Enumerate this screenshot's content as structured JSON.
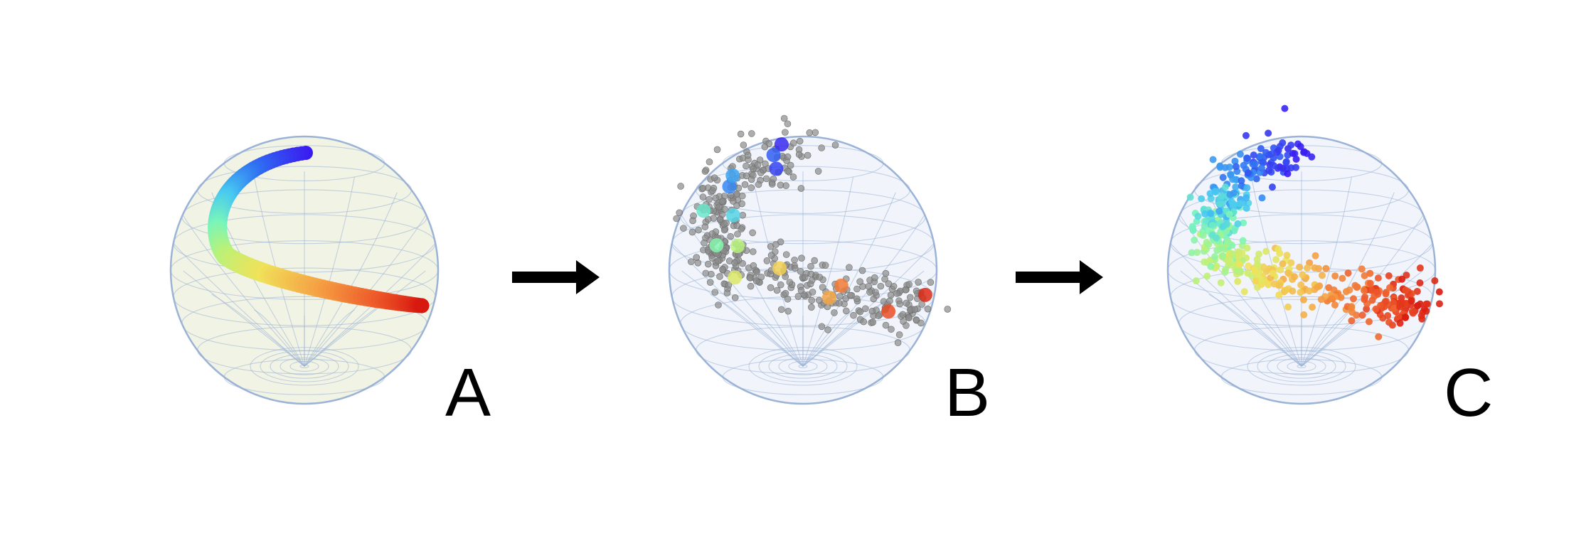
{
  "panels": [
    {
      "letter": "A",
      "sphere_fill": "#eef1df",
      "points": "smooth-curve"
    },
    {
      "letter": "B",
      "sphere_fill": "#eef2fa",
      "points": "noisy-gray-with-colored-anchors"
    },
    {
      "letter": "C",
      "sphere_fill": "#eef2fa",
      "points": "colored-cloud"
    }
  ],
  "colors": {
    "sphere_line": "#9bb3d6",
    "arrow": "#000000",
    "gray_points": "#8a8a8a",
    "gradient": [
      "#3a1cf0",
      "#2f6ef2",
      "#47c8f2",
      "#78f5b9",
      "#b8f27a",
      "#f0e25a",
      "#f5a244",
      "#ee5a2a",
      "#d8190f"
    ]
  },
  "arrows": [
    "arrow-1",
    "arrow-2"
  ]
}
